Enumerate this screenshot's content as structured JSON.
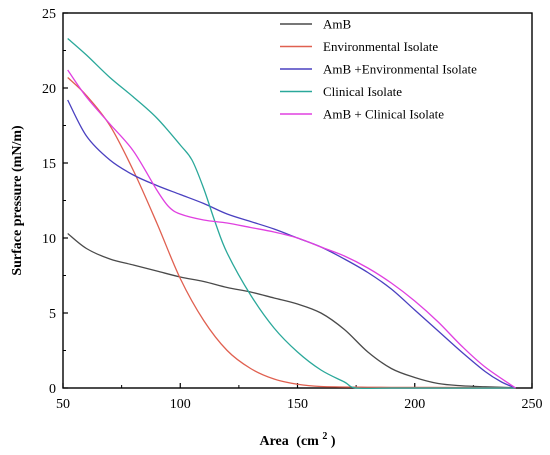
{
  "chart_data": {
    "type": "line",
    "title": "",
    "xlabel": "Area",
    "xlabel_unit_base": "(cm",
    "xlabel_unit_exp": "2",
    "xlabel_unit_close": ")",
    "ylabel": "Surface pressure (mN/m)",
    "xlim": [
      50,
      250
    ],
    "ylim": [
      0,
      25
    ],
    "xticks": [
      50,
      100,
      150,
      200,
      250
    ],
    "yticks": [
      0,
      5,
      10,
      15,
      20,
      25
    ],
    "grid": false,
    "legend_position": "top-right",
    "series": [
      {
        "name": "AmB",
        "color": "#4a4a4a",
        "points": [
          [
            52,
            10.3
          ],
          [
            60,
            9.3
          ],
          [
            70,
            8.6
          ],
          [
            80,
            8.2
          ],
          [
            90,
            7.8
          ],
          [
            100,
            7.4
          ],
          [
            110,
            7.1
          ],
          [
            120,
            6.7
          ],
          [
            130,
            6.4
          ],
          [
            140,
            6.0
          ],
          [
            150,
            5.6
          ],
          [
            160,
            5.0
          ],
          [
            170,
            3.9
          ],
          [
            180,
            2.4
          ],
          [
            190,
            1.3
          ],
          [
            200,
            0.7
          ],
          [
            210,
            0.3
          ],
          [
            220,
            0.15
          ],
          [
            230,
            0.08
          ],
          [
            240,
            0.03
          ],
          [
            243,
            0.0
          ]
        ]
      },
      {
        "name": "Environmental Isolate",
        "color": "#e06050",
        "points": [
          [
            52,
            20.7
          ],
          [
            60,
            19.5
          ],
          [
            70,
            17.5
          ],
          [
            80,
            14.5
          ],
          [
            90,
            11.0
          ],
          [
            100,
            7.3
          ],
          [
            110,
            4.5
          ],
          [
            120,
            2.5
          ],
          [
            130,
            1.3
          ],
          [
            140,
            0.6
          ],
          [
            150,
            0.25
          ],
          [
            160,
            0.1
          ],
          [
            180,
            0.05
          ],
          [
            200,
            0.04
          ],
          [
            220,
            0.03
          ],
          [
            243,
            0.0
          ]
        ]
      },
      {
        "name": "AmB +Environmental Isolate",
        "color": "#4a40c0",
        "points": [
          [
            52,
            19.2
          ],
          [
            60,
            16.8
          ],
          [
            70,
            15.2
          ],
          [
            80,
            14.2
          ],
          [
            90,
            13.5
          ],
          [
            100,
            12.9
          ],
          [
            110,
            12.3
          ],
          [
            120,
            11.6
          ],
          [
            130,
            11.1
          ],
          [
            140,
            10.6
          ],
          [
            150,
            10.0
          ],
          [
            160,
            9.4
          ],
          [
            170,
            8.6
          ],
          [
            180,
            7.7
          ],
          [
            190,
            6.6
          ],
          [
            200,
            5.2
          ],
          [
            210,
            3.8
          ],
          [
            220,
            2.4
          ],
          [
            230,
            1.1
          ],
          [
            237,
            0.4
          ],
          [
            243,
            0.0
          ]
        ]
      },
      {
        "name": "Clinical Isolate",
        "color": "#2aa89a",
        "points": [
          [
            52,
            23.3
          ],
          [
            60,
            22.2
          ],
          [
            70,
            20.7
          ],
          [
            80,
            19.4
          ],
          [
            90,
            18.0
          ],
          [
            100,
            16.2
          ],
          [
            105,
            15.2
          ],
          [
            110,
            13.3
          ],
          [
            115,
            11.0
          ],
          [
            120,
            9.0
          ],
          [
            130,
            6.2
          ],
          [
            140,
            4.0
          ],
          [
            150,
            2.4
          ],
          [
            160,
            1.2
          ],
          [
            170,
            0.4
          ],
          [
            175,
            0.0
          ],
          [
            190,
            0.0
          ],
          [
            210,
            0.0
          ],
          [
            243,
            0.0
          ]
        ]
      },
      {
        "name": "AmB + Clinical Isolate",
        "color": "#e040e0",
        "points": [
          [
            52,
            21.2
          ],
          [
            60,
            19.4
          ],
          [
            70,
            17.6
          ],
          [
            80,
            15.8
          ],
          [
            90,
            13.2
          ],
          [
            95,
            12.1
          ],
          [
            100,
            11.6
          ],
          [
            110,
            11.2
          ],
          [
            120,
            11.0
          ],
          [
            130,
            10.7
          ],
          [
            140,
            10.4
          ],
          [
            150,
            10.0
          ],
          [
            160,
            9.4
          ],
          [
            170,
            8.8
          ],
          [
            180,
            8.0
          ],
          [
            190,
            7.0
          ],
          [
            200,
            5.8
          ],
          [
            210,
            4.4
          ],
          [
            220,
            2.8
          ],
          [
            230,
            1.4
          ],
          [
            243,
            0.0
          ]
        ]
      }
    ]
  }
}
